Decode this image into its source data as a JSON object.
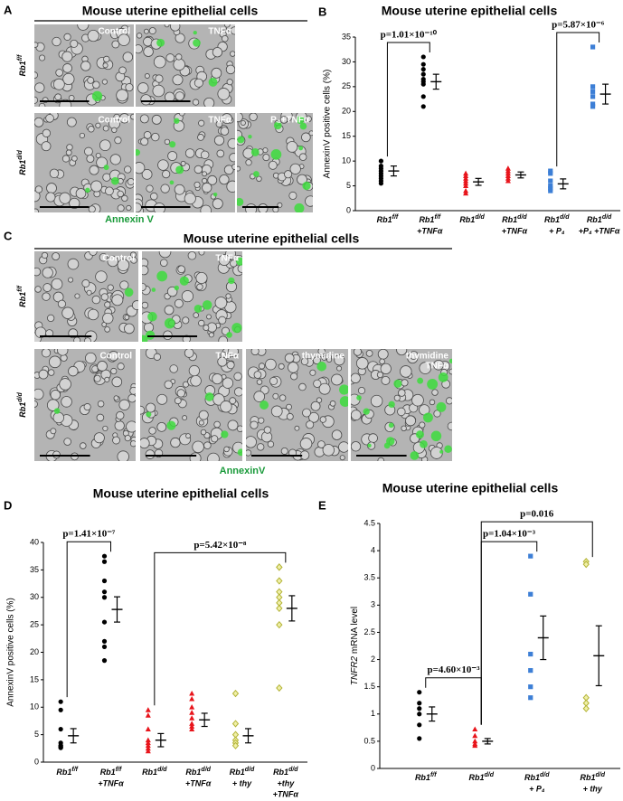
{
  "panels": {
    "A": {
      "label": "A",
      "title": "Mouse uterine epithelial cells",
      "rows": [
        {
          "genotype": {
            "base": "Rb1",
            "sup": "f/f"
          },
          "images": [
            "Control",
            "TNFα"
          ]
        },
        {
          "genotype": {
            "base": "Rb1",
            "sup": "d/d"
          },
          "images": [
            "Control",
            "TNFα",
            "P₄+TNFα"
          ]
        }
      ],
      "stain": "Annexin V"
    },
    "C": {
      "label": "C",
      "title": "Mouse uterine epithelial cells",
      "rows": [
        {
          "genotype": {
            "base": "Rb1",
            "sup": "f/f"
          },
          "images": [
            "Control",
            "TNFα"
          ]
        },
        {
          "genotype": {
            "base": "Rb1",
            "sup": "d/d"
          },
          "images": [
            "Control",
            "TNFα",
            "thymidine",
            [
              "thymidine",
              "TNFα"
            ]
          ]
        }
      ],
      "stain": "AnnexinV"
    }
  },
  "chart_data": [
    {
      "type": "strip",
      "panel": "B",
      "title": "Mouse uterine epithelial cells",
      "ylabel": "AnnexinV positive cells (%)",
      "ylim": [
        0,
        35
      ],
      "yticks": [
        0,
        5,
        10,
        15,
        20,
        25,
        30,
        35
      ],
      "groups": [
        {
          "category": {
            "base": "Rb1",
            "sup": "f/f",
            "lines": []
          },
          "color": "#000000",
          "marker": "circle",
          "values": [
            10,
            9,
            8.5,
            8,
            7.5,
            7,
            6.5,
            6,
            5.5
          ],
          "mean": 8,
          "error": 1
        },
        {
          "category": {
            "base": "Rb1",
            "sup": "f/f",
            "lines": [
              "+TNFα"
            ]
          },
          "color": "#000000",
          "marker": "circle",
          "values": [
            31,
            29.5,
            28.5,
            27.5,
            26.5,
            26,
            25.5,
            23,
            21
          ],
          "mean": 26,
          "error": 1.5
        },
        {
          "category": {
            "base": "Rb1",
            "sup": "d/d",
            "lines": []
          },
          "color": "#e8141b",
          "marker": "triangle",
          "values": [
            7.5,
            7,
            6.5,
            6,
            5.5,
            5,
            4,
            3.5
          ],
          "mean": 5.8,
          "error": 0.7
        },
        {
          "category": {
            "base": "Rb1",
            "sup": "d/d",
            "lines": [
              "+TNFα"
            ]
          },
          "color": "#e8141b",
          "marker": "triangle",
          "values": [
            8.5,
            8,
            7.5,
            7,
            6.5,
            6
          ],
          "mean": 7.2,
          "error": 0.6
        },
        {
          "category": {
            "base": "Rb1",
            "sup": "d/d",
            "lines": [
              "+ P₄"
            ]
          },
          "color": "#3d7fd6",
          "marker": "square",
          "values": [
            8,
            7.5,
            6,
            5,
            4.5,
            4
          ],
          "mean": 5.4,
          "error": 1
        },
        {
          "category": {
            "base": "Rb1",
            "sup": "d/d",
            "lines": [
              "+P₄ +TNFα"
            ]
          },
          "color": "#3d7fd6",
          "marker": "square",
          "values": [
            33,
            25,
            24,
            23,
            21.5,
            21
          ],
          "mean": 23.5,
          "error": 2
        }
      ],
      "annotations": [
        {
          "label": "p=1.01×10⁻¹⁰",
          "from": 0,
          "to": 1
        },
        {
          "label": "p=5.87×10⁻⁶",
          "from": 4,
          "to": 5
        }
      ]
    },
    {
      "type": "strip",
      "panel": "D",
      "title": "Mouse uterine epithelial cells",
      "ylabel": "AnnexinV positive cells (%)",
      "ylim": [
        0,
        40
      ],
      "yticks": [
        0,
        5,
        10,
        15,
        20,
        25,
        30,
        35,
        40
      ],
      "groups": [
        {
          "category": {
            "base": "Rb1",
            "sup": "f/f",
            "lines": []
          },
          "color": "#000000",
          "marker": "circle",
          "values": [
            11,
            9.5,
            6,
            3.5,
            3,
            2.8,
            2.7,
            2.6,
            3
          ],
          "mean": 4.8,
          "error": 1.3
        },
        {
          "category": {
            "base": "Rb1",
            "sup": "f/f",
            "lines": [
              "+TNFα"
            ]
          },
          "color": "#000000",
          "marker": "circle",
          "values": [
            37.5,
            36.5,
            33,
            31,
            30,
            25.5,
            22,
            21,
            18.5
          ],
          "mean": 27.8,
          "error": 2.3
        },
        {
          "category": {
            "base": "Rb1",
            "sup": "d/d",
            "lines": []
          },
          "color": "#e8141b",
          "marker": "triangle",
          "values": [
            9.5,
            8.5,
            6,
            4,
            3.5,
            3,
            2.5,
            2
          ],
          "mean": 4,
          "error": 1.2
        },
        {
          "category": {
            "base": "Rb1",
            "sup": "d/d",
            "lines": [
              "+TNFα"
            ]
          },
          "color": "#e8141b",
          "marker": "triangle",
          "values": [
            12.5,
            11.5,
            10,
            9,
            8,
            7,
            6.5,
            6
          ],
          "mean": 7.7,
          "error": 1.2
        },
        {
          "category": {
            "base": "Rb1",
            "sup": "d/d",
            "lines": [
              "+ thy"
            ]
          },
          "color": "#b3b336",
          "marker": "diamond",
          "values": [
            12.5,
            7,
            5,
            4,
            3.5,
            3
          ],
          "mean": 4.8,
          "error": 1.3
        },
        {
          "category": {
            "base": "Rb1",
            "sup": "d/d",
            "lines": [
              "+thy",
              "+TNFα"
            ]
          },
          "color": "#b3b336",
          "marker": "diamond",
          "values": [
            35.5,
            35.5,
            33,
            31,
            30,
            29,
            28,
            25,
            13.5
          ],
          "mean": 28,
          "error": 2.3
        }
      ],
      "annotations": [
        {
          "label": "p=1.41×10⁻⁷",
          "from": 0,
          "to": 1
        },
        {
          "label": "p=5.42×10⁻⁸",
          "from": 2,
          "to": 5
        }
      ]
    },
    {
      "type": "strip",
      "panel": "E",
      "title": "Mouse uterine epithelial cells",
      "ylabel": [
        {
          "text": "TNFR2",
          "italic": true
        },
        {
          "text": " mRNA level",
          "italic": false
        }
      ],
      "ylim": [
        0,
        4.5
      ],
      "yticks": [
        0,
        0.5,
        1,
        1.5,
        2,
        2.5,
        3,
        3.5,
        4,
        4.5
      ],
      "groups": [
        {
          "category": {
            "base": "Rb1",
            "sup": "f/f",
            "lines": []
          },
          "color": "#000000",
          "marker": "circle",
          "values": [
            1.4,
            1.2,
            1.1,
            1,
            0.8,
            0.55
          ],
          "mean": 1,
          "error": 0.13
        },
        {
          "category": {
            "base": "Rb1",
            "sup": "d/d",
            "lines": []
          },
          "color": "#e8141b",
          "marker": "triangle",
          "values": [
            0.72,
            0.6,
            0.5,
            0.45,
            0.42
          ],
          "mean": 0.5,
          "error": 0.05
        },
        {
          "category": {
            "base": "Rb1",
            "sup": "d/d",
            "lines": [
              "+ P₄"
            ]
          },
          "color": "#3d7fd6",
          "marker": "square",
          "values": [
            3.9,
            3.2,
            2.1,
            1.8,
            1.5,
            1.3
          ],
          "mean": 2.4,
          "error": 0.4
        },
        {
          "category": {
            "base": "Rb1",
            "sup": "d/d",
            "lines": [
              "+ thy"
            ]
          },
          "color": "#b3b336",
          "marker": "diamond",
          "values": [
            3.8,
            3.75,
            1.3,
            1.2,
            1.1
          ],
          "mean": 2.07,
          "error": 0.55
        }
      ],
      "annotations": [
        {
          "label": "p=4.60×10⁻³",
          "from": 0,
          "to": 1
        },
        {
          "label": "p=1.04×10⁻³",
          "from": 1,
          "to": 2
        },
        {
          "label": "p=0.016",
          "from": 1,
          "to": 3
        }
      ]
    }
  ]
}
